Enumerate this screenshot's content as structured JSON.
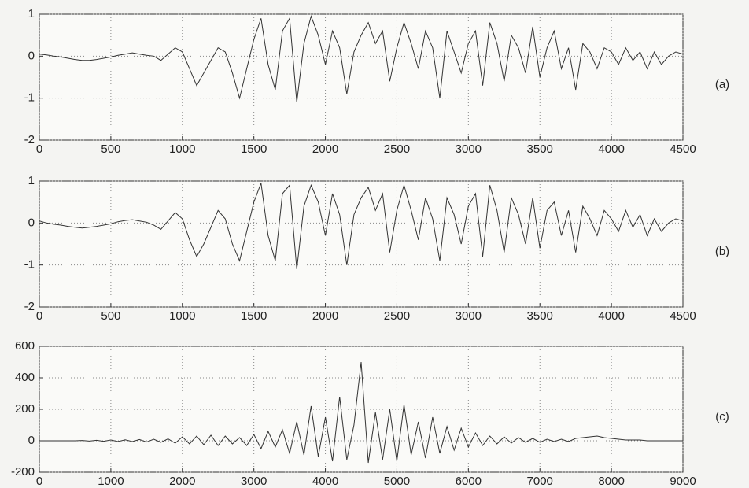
{
  "chart_data": [
    {
      "type": "line",
      "label": "(a)",
      "x": [
        0,
        50,
        100,
        150,
        200,
        250,
        300,
        350,
        400,
        450,
        500,
        550,
        600,
        650,
        700,
        750,
        800,
        850,
        900,
        950,
        1000,
        1050,
        1100,
        1150,
        1200,
        1250,
        1300,
        1350,
        1400,
        1450,
        1500,
        1550,
        1600,
        1650,
        1700,
        1750,
        1800,
        1850,
        1900,
        1950,
        2000,
        2050,
        2100,
        2150,
        2200,
        2250,
        2300,
        2350,
        2400,
        2450,
        2500,
        2550,
        2600,
        2650,
        2700,
        2750,
        2800,
        2850,
        2900,
        2950,
        3000,
        3050,
        3100,
        3150,
        3200,
        3250,
        3300,
        3350,
        3400,
        3450,
        3500,
        3550,
        3600,
        3650,
        3700,
        3750,
        3800,
        3850,
        3900,
        3950,
        4000,
        4050,
        4100,
        4150,
        4200,
        4250,
        4300,
        4350,
        4400,
        4450,
        4500
      ],
      "series": [
        {
          "color": "#333333",
          "values": [
            0.05,
            0.03,
            0.0,
            -0.02,
            -0.05,
            -0.08,
            -0.1,
            -0.1,
            -0.08,
            -0.05,
            -0.02,
            0.02,
            0.05,
            0.08,
            0.05,
            0.02,
            0.0,
            -0.1,
            0.05,
            0.2,
            0.1,
            -0.3,
            -0.7,
            -0.4,
            -0.1,
            0.2,
            0.1,
            -0.4,
            -1.0,
            -0.3,
            0.4,
            0.9,
            -0.2,
            -0.8,
            0.6,
            0.9,
            -1.1,
            0.3,
            0.95,
            0.5,
            -0.2,
            0.6,
            0.2,
            -0.9,
            0.1,
            0.5,
            0.8,
            0.3,
            0.6,
            -0.6,
            0.2,
            0.8,
            0.3,
            -0.3,
            0.6,
            0.2,
            -1.0,
            0.6,
            0.1,
            -0.4,
            0.3,
            0.6,
            -0.7,
            0.8,
            0.3,
            -0.6,
            0.5,
            0.2,
            -0.4,
            0.7,
            -0.5,
            0.2,
            0.6,
            -0.3,
            0.2,
            -0.8,
            0.3,
            0.1,
            -0.3,
            0.2,
            0.1,
            -0.2,
            0.2,
            -0.1,
            0.1,
            -0.3,
            0.1,
            -0.2,
            0.0,
            0.1,
            0.05
          ]
        }
      ],
      "xlim": [
        0,
        4500
      ],
      "xticks": [
        0,
        500,
        1000,
        1500,
        2000,
        2500,
        3000,
        3500,
        4000,
        4500
      ],
      "ylim": [
        -2,
        1
      ],
      "yticks": [
        -2,
        -1,
        0,
        1
      ],
      "grid": true
    },
    {
      "type": "line",
      "label": "(b)",
      "x": [
        0,
        50,
        100,
        150,
        200,
        250,
        300,
        350,
        400,
        450,
        500,
        550,
        600,
        650,
        700,
        750,
        800,
        850,
        900,
        950,
        1000,
        1050,
        1100,
        1150,
        1200,
        1250,
        1300,
        1350,
        1400,
        1450,
        1500,
        1550,
        1600,
        1650,
        1700,
        1750,
        1800,
        1850,
        1900,
        1950,
        2000,
        2050,
        2100,
        2150,
        2200,
        2250,
        2300,
        2350,
        2400,
        2450,
        2500,
        2550,
        2600,
        2650,
        2700,
        2750,
        2800,
        2850,
        2900,
        2950,
        3000,
        3050,
        3100,
        3150,
        3200,
        3250,
        3300,
        3350,
        3400,
        3450,
        3500,
        3550,
        3600,
        3650,
        3700,
        3750,
        3800,
        3850,
        3900,
        3950,
        4000,
        4050,
        4100,
        4150,
        4200,
        4250,
        4300,
        4350,
        4400,
        4450,
        4500
      ],
      "series": [
        {
          "color": "#333333",
          "values": [
            0.05,
            0.0,
            -0.03,
            -0.05,
            -0.08,
            -0.1,
            -0.12,
            -0.1,
            -0.08,
            -0.05,
            -0.02,
            0.03,
            0.06,
            0.08,
            0.05,
            0.02,
            -0.05,
            -0.15,
            0.05,
            0.25,
            0.1,
            -0.4,
            -0.8,
            -0.5,
            -0.1,
            0.3,
            0.1,
            -0.5,
            -0.9,
            -0.2,
            0.5,
            0.95,
            -0.3,
            -0.9,
            0.7,
            0.9,
            -1.1,
            0.4,
            0.9,
            0.5,
            -0.3,
            0.7,
            0.2,
            -1.0,
            0.2,
            0.6,
            0.85,
            0.3,
            0.7,
            -0.7,
            0.3,
            0.9,
            0.3,
            -0.4,
            0.6,
            0.1,
            -0.9,
            0.6,
            0.2,
            -0.5,
            0.4,
            0.7,
            -0.8,
            0.9,
            0.3,
            -0.7,
            0.6,
            0.2,
            -0.5,
            0.6,
            -0.6,
            0.3,
            0.5,
            -0.3,
            0.3,
            -0.7,
            0.4,
            0.1,
            -0.3,
            0.3,
            0.1,
            -0.2,
            0.3,
            -0.1,
            0.2,
            -0.3,
            0.1,
            -0.2,
            0.0,
            0.1,
            0.05
          ]
        }
      ],
      "xlim": [
        0,
        4500
      ],
      "xticks": [
        0,
        500,
        1000,
        1500,
        2000,
        2500,
        3000,
        3500,
        4000,
        4500
      ],
      "ylim": [
        -2,
        1
      ],
      "yticks": [
        -2,
        -1,
        0,
        1
      ],
      "grid": true
    },
    {
      "type": "line",
      "label": "(c)",
      "x": [
        0,
        100,
        200,
        300,
        400,
        500,
        600,
        700,
        800,
        900,
        1000,
        1100,
        1200,
        1300,
        1400,
        1500,
        1600,
        1700,
        1800,
        1900,
        2000,
        2100,
        2200,
        2300,
        2400,
        2500,
        2600,
        2700,
        2800,
        2900,
        3000,
        3100,
        3200,
        3300,
        3400,
        3500,
        3600,
        3700,
        3800,
        3900,
        4000,
        4100,
        4200,
        4300,
        4400,
        4500,
        4600,
        4700,
        4800,
        4900,
        5000,
        5100,
        5200,
        5300,
        5400,
        5500,
        5600,
        5700,
        5800,
        5900,
        6000,
        6100,
        6200,
        6300,
        6400,
        6500,
        6600,
        6700,
        6800,
        6900,
        7000,
        7100,
        7200,
        7300,
        7400,
        7500,
        7600,
        7700,
        7800,
        7900,
        8000,
        8100,
        8200,
        8300,
        8400,
        8500,
        8600,
        8700,
        8800,
        8900,
        9000
      ],
      "series": [
        {
          "color": "#333333",
          "values": [
            0,
            0,
            0,
            0,
            0,
            0,
            2,
            -2,
            3,
            -3,
            5,
            -5,
            6,
            -5,
            8,
            -8,
            10,
            -10,
            12,
            -15,
            25,
            -20,
            30,
            -25,
            35,
            -30,
            30,
            -20,
            20,
            -30,
            40,
            -50,
            60,
            -40,
            70,
            -80,
            120,
            -90,
            220,
            -100,
            150,
            -130,
            280,
            -120,
            100,
            500,
            -140,
            180,
            -120,
            200,
            -130,
            230,
            -90,
            120,
            -110,
            150,
            -80,
            90,
            -60,
            80,
            -40,
            50,
            -30,
            30,
            -20,
            25,
            -15,
            20,
            -10,
            15,
            -10,
            10,
            -5,
            10,
            -5,
            15,
            20,
            25,
            30,
            20,
            15,
            10,
            5,
            5,
            5,
            0,
            0,
            0,
            0,
            0,
            0
          ]
        }
      ],
      "xlim": [
        0,
        9000
      ],
      "xticks": [
        0,
        1000,
        2000,
        3000,
        4000,
        5000,
        6000,
        7000,
        8000,
        9000
      ],
      "ylim": [
        -200,
        600
      ],
      "yticks": [
        -200,
        0,
        200,
        400,
        600
      ],
      "grid": true
    }
  ]
}
